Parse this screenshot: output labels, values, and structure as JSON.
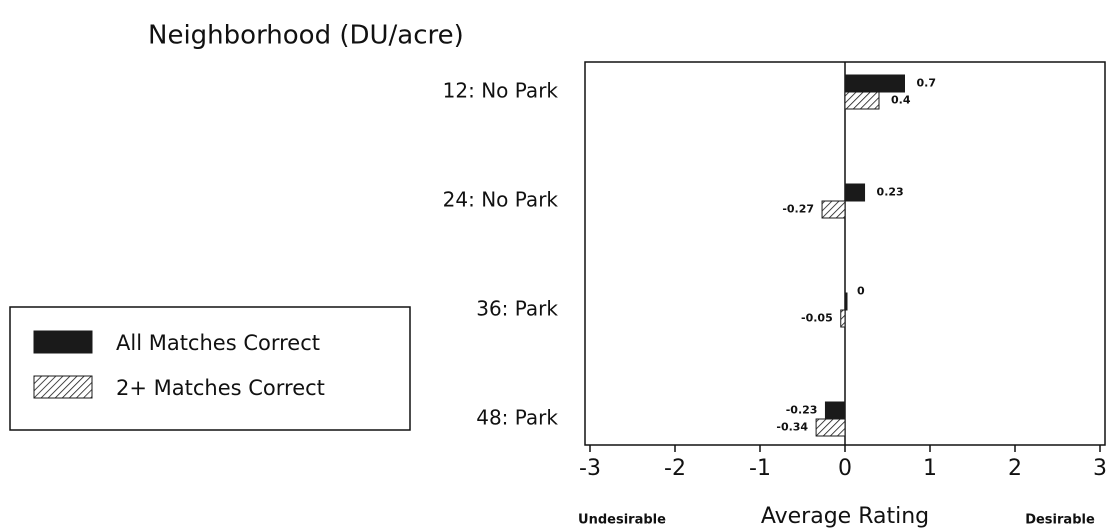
{
  "chart_data": {
    "type": "hbar",
    "title": "Neighborhood (DU/acre)",
    "categories": [
      "12: No Park",
      "24: No Park",
      "36: Park",
      "48: Park"
    ],
    "series": [
      {
        "name": "All Matches Correct",
        "color": "#1a1a1a",
        "pattern": "solid",
        "values": [
          0.7,
          0.23,
          0,
          -0.23
        ]
      },
      {
        "name": "2+ Matches Correct",
        "color": "#1a1a1a",
        "pattern": "hatch",
        "values": [
          0.4,
          -0.27,
          -0.05,
          -0.34
        ]
      }
    ],
    "xlim": [
      -3,
      3
    ],
    "xticks": [
      -3,
      -2,
      -1,
      0,
      1,
      2,
      3
    ],
    "xlabel": "Average Rating",
    "annotations": [
      "Undesirable",
      "Desirable"
    ],
    "legend": "left"
  }
}
